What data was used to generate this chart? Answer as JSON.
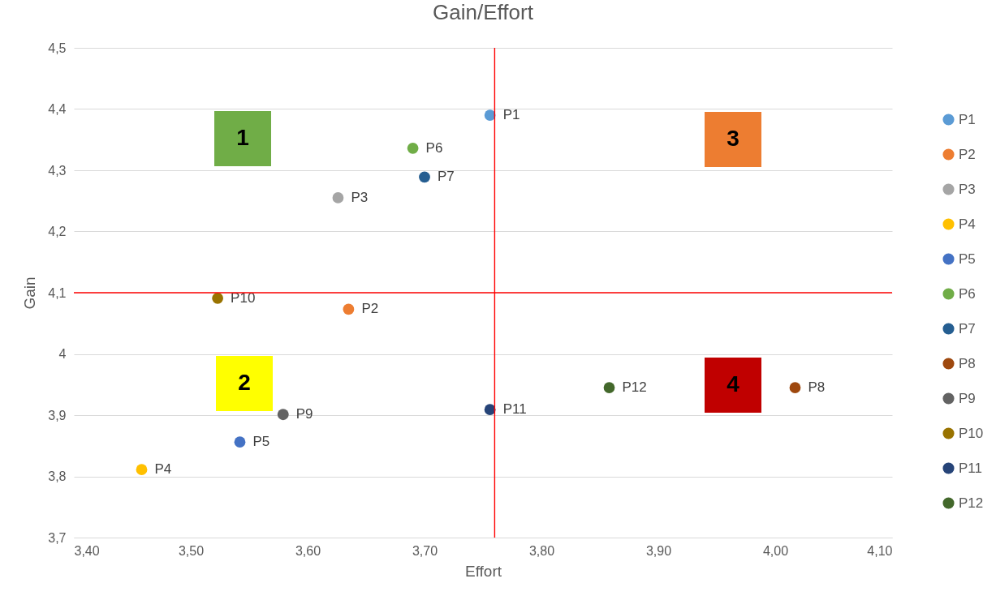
{
  "chart_data": {
    "type": "scatter",
    "title": "Gain/Effort",
    "xlabel": "Effort",
    "ylabel": "Gain",
    "xlim": [
      3.4,
      4.1
    ],
    "ylim": [
      3.7,
      4.5
    ],
    "xticks": [
      {
        "value": 3.4,
        "label": "3,40"
      },
      {
        "value": 3.5,
        "label": "3,50"
      },
      {
        "value": 3.6,
        "label": "3,60"
      },
      {
        "value": 3.7,
        "label": "3,70"
      },
      {
        "value": 3.8,
        "label": "3,80"
      },
      {
        "value": 3.9,
        "label": "3,90"
      },
      {
        "value": 4.0,
        "label": "4,00"
      },
      {
        "value": 4.1,
        "label": "4,10"
      }
    ],
    "yticks": [
      {
        "value": 3.7,
        "label": "3,7"
      },
      {
        "value": 3.8,
        "label": "3,8"
      },
      {
        "value": 3.9,
        "label": "3,9"
      },
      4,
      {
        "value": 4.1,
        "label": "4,1"
      },
      {
        "value": 4.2,
        "label": "4,2"
      },
      {
        "value": 4.3,
        "label": "4,3"
      },
      {
        "value": 4.4,
        "label": "4,4"
      },
      {
        "value": 4.5,
        "label": "4,5"
      }
    ],
    "grid": "y",
    "legend": "right",
    "marker": "circle",
    "series": [
      {
        "name": "P1",
        "color": "#5b9bd5",
        "x": [
          3.756
        ],
        "values": [
          4.39
        ]
      },
      {
        "name": "P2",
        "color": "#ed7d31",
        "x": [
          3.635
        ],
        "values": [
          4.073
        ]
      },
      {
        "name": "P3",
        "color": "#a5a5a5",
        "x": [
          3.626
        ],
        "values": [
          4.255
        ]
      },
      {
        "name": "P4",
        "color": "#ffc000",
        "x": [
          3.458
        ],
        "values": [
          3.811
        ]
      },
      {
        "name": "P5",
        "color": "#4472c4",
        "x": [
          3.542
        ],
        "values": [
          3.856
        ]
      },
      {
        "name": "P6",
        "color": "#70ad47",
        "x": [
          3.69
        ],
        "values": [
          4.336
        ]
      },
      {
        "name": "P7",
        "color": "#255e91",
        "x": [
          3.7
        ],
        "values": [
          4.289
        ]
      },
      {
        "name": "P8",
        "color": "#9e480e",
        "x": [
          4.017
        ],
        "values": [
          3.945
        ]
      },
      {
        "name": "P9",
        "color": "#636363",
        "x": [
          3.579
        ],
        "values": [
          3.901
        ]
      },
      {
        "name": "P10",
        "color": "#997300",
        "x": [
          3.523
        ],
        "values": [
          4.091
        ]
      },
      {
        "name": "P11",
        "color": "#264478",
        "x": [
          3.756
        ],
        "values": [
          3.909
        ]
      },
      {
        "name": "P12",
        "color": "#43682b",
        "x": [
          3.858
        ],
        "values": [
          3.945
        ]
      }
    ],
    "ref_lines": [
      {
        "axis": "x",
        "value": 3.76,
        "color": "#ff0000"
      },
      {
        "axis": "y",
        "value": 4.1,
        "color": "#ff0000"
      }
    ],
    "annotations": [
      "1",
      "2",
      "3",
      "4"
    ]
  }
}
